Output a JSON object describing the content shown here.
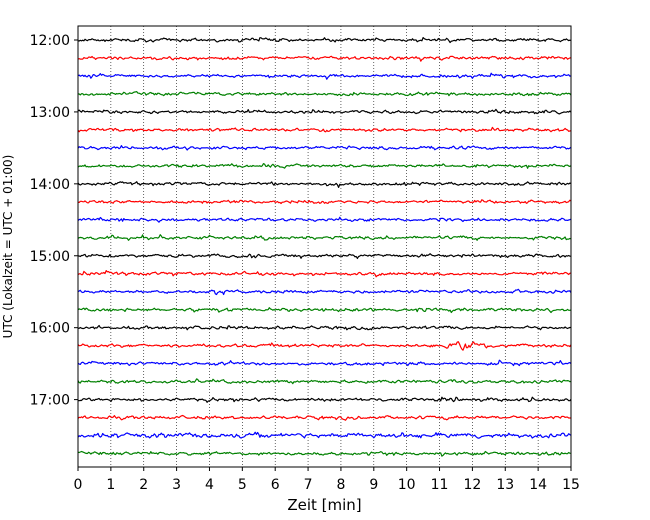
{
  "chart_data": {
    "type": "line",
    "xlabel": "Zeit  [min]",
    "ylabel": "UTC (Lokalzeit = UTC + 01:00)",
    "xlim": [
      0,
      15
    ],
    "xticks": [
      0,
      1,
      2,
      3,
      4,
      5,
      6,
      7,
      8,
      9,
      10,
      11,
      12,
      13,
      14,
      15
    ],
    "ytick_labels": [
      "12:00",
      "13:00",
      "14:00",
      "15:00",
      "16:00",
      "17:00"
    ],
    "trace_interval_minutes": 15,
    "trace_count": 24,
    "color_cycle": [
      "#000000",
      "#ff0000",
      "#0000ff",
      "#008000"
    ],
    "vertical_grid": "dotted",
    "events": [
      {
        "trace_start": "16:15",
        "minute_start": 11.3,
        "minute_end": 12.6,
        "amplitude": "large"
      },
      {
        "trace_start": "17:30",
        "minute_start": 0.0,
        "minute_end": 15.0,
        "amplitude": "elevated"
      }
    ]
  }
}
